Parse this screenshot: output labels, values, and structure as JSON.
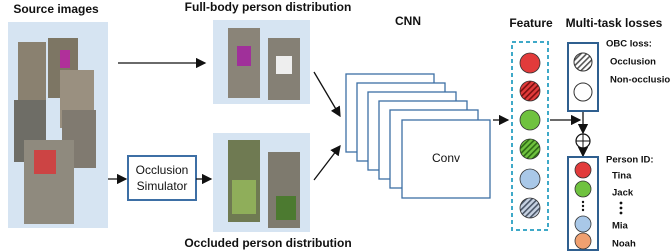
{
  "source": {
    "title": "Source images"
  },
  "full_body": {
    "title": "Full-body person distribution"
  },
  "occluded": {
    "title": "Occluded person distribution"
  },
  "simulator": {
    "lines": [
      "Occlusion",
      "Simulator"
    ]
  },
  "cnn": {
    "title": "CNN",
    "layer": "Conv"
  },
  "feature": {
    "title": "Feature"
  },
  "losses": {
    "title": "Multi-task losses",
    "obc": {
      "title": "OBC loss:",
      "classes": [
        "Occlusion",
        "Non-occlusion"
      ]
    },
    "person_id": {
      "title": "Person ID:",
      "names": [
        "Tina",
        "Jack",
        "Mia",
        "Noah"
      ]
    }
  }
}
